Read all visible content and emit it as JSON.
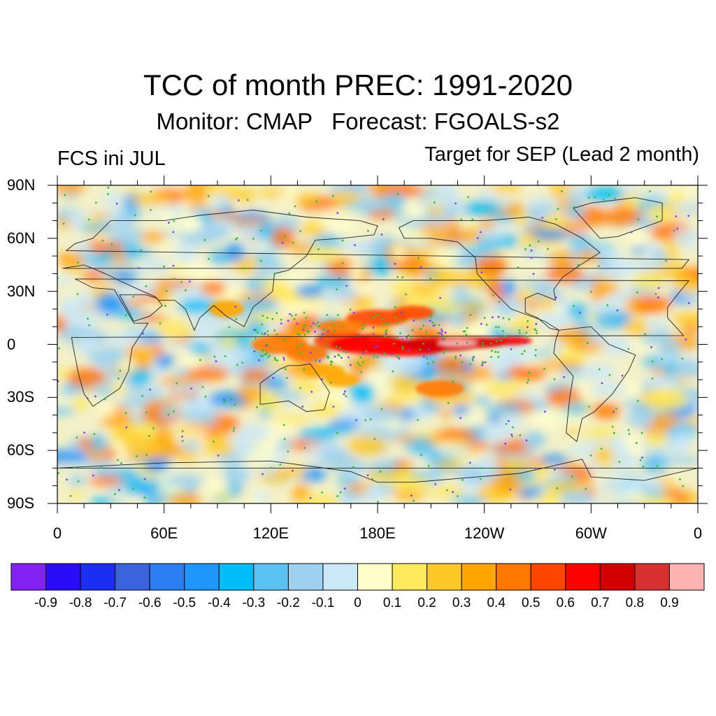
{
  "title": "TCC of month PREC: 1991-2020",
  "subtitle": "Monitor: CMAP   Forecast: FGOALS-s2",
  "left_label": "FCS ini JUL",
  "right_label": "Target for SEP (Lead 2 month)",
  "lat_labels": [
    "90N",
    "60N",
    "30N",
    "0",
    "30S",
    "60S",
    "90S"
  ],
  "lon_labels": [
    "0",
    "60E",
    "120E",
    "180E",
    "120W",
    "60W",
    "0"
  ],
  "colorbar": {
    "colors": [
      "#8221f0",
      "#2a0cf7",
      "#1b2ef2",
      "#3c63de",
      "#2c7ef0",
      "#1e96fa",
      "#00bef7",
      "#5cc2f2",
      "#9ed1f0",
      "#cbe8f7",
      "#ffffcc",
      "#ffe95e",
      "#ffca29",
      "#ffa500",
      "#ff7800",
      "#ff4500",
      "#ff0000",
      "#d40000",
      "#d83030",
      "#ffb3b3"
    ],
    "labels": [
      "-0.9",
      "-0.8",
      "-0.7",
      "-0.6",
      "-0.5",
      "-0.4",
      "-0.3",
      "-0.2",
      "-0.1",
      "0",
      "0.1",
      "0.2",
      "0.3",
      "0.4",
      "0.5",
      "0.6",
      "0.7",
      "0.8",
      "0.9"
    ]
  }
}
